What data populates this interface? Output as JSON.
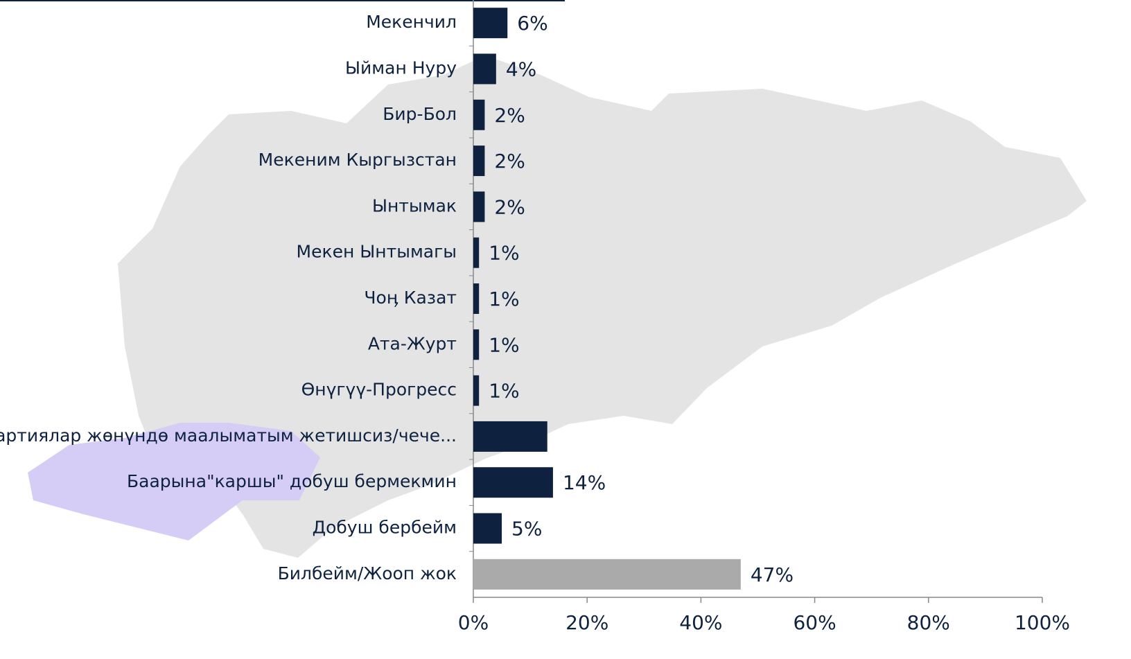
{
  "chart_data": {
    "type": "hbar",
    "categories": [
      "Мекенчил",
      "Ыйман Нуру",
      "Бир-Бол",
      "Мекеним Кыргызстан",
      "Ынтымак",
      "Мекен Ынтымагы",
      "Чоӊ Казат",
      "Ата-Журт",
      "Өнүгүү-Прогресс",
      "Партиялар жөнүндө маалыматым жетишсиз/чече...",
      "Баарына\"каршы\" добуш бермекмин",
      "Добуш бербейм",
      "Билбейм/Жооп жок"
    ],
    "values": [
      6,
      4,
      2,
      2,
      2,
      1,
      1,
      1,
      1,
      13,
      14,
      5,
      47
    ],
    "value_labels": [
      "6%",
      "4%",
      "2%",
      "2%",
      "2%",
      "1%",
      "1%",
      "1%",
      "1%",
      null,
      "14%",
      "5%",
      "47%"
    ],
    "colors": [
      "#0e2240",
      "#0e2240",
      "#0e2240",
      "#0e2240",
      "#0e2240",
      "#0e2240",
      "#0e2240",
      "#0e2240",
      "#0e2240",
      "#0e2240",
      "#0e2240",
      "#0e2240",
      "#aaaaab"
    ],
    "xlim": [
      0,
      100
    ],
    "xticks": [
      {
        "value": 0,
        "label": "0%"
      },
      {
        "value": 20,
        "label": "20%"
      },
      {
        "value": 40,
        "label": "40%"
      },
      {
        "value": 60,
        "label": "60%"
      },
      {
        "value": 80,
        "label": "80%"
      },
      {
        "value": 100,
        "label": "100%"
      }
    ]
  }
}
